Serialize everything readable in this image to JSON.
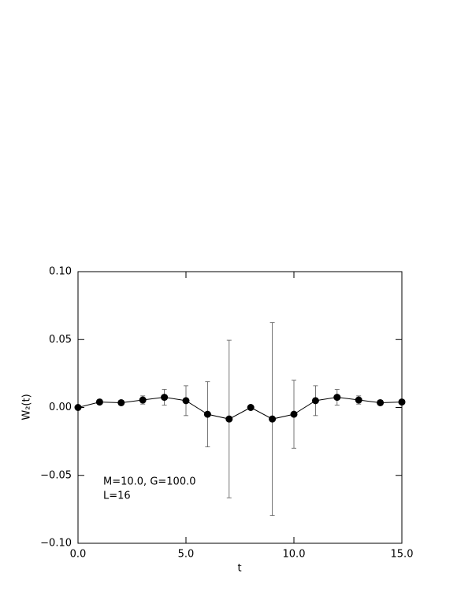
{
  "chart_data": {
    "type": "errorbar_line",
    "x_label": "t",
    "y_label": "W₂(t)",
    "annotations": [
      "M=10.0, G=100.0",
      "L=16"
    ],
    "x": [
      0,
      1,
      2,
      3,
      4,
      5,
      6,
      7,
      8,
      9,
      10,
      11,
      12,
      13,
      14,
      15
    ],
    "series": [
      {
        "color": "#000000",
        "values": [
          0.0,
          0.004,
          0.0035,
          0.0055,
          0.0075,
          0.005,
          -0.005,
          -0.0085,
          0.0,
          -0.0085,
          -0.005,
          0.005,
          0.0075,
          0.0055,
          0.0035,
          0.004
        ],
        "errors": [
          null,
          null,
          null,
          0.003,
          0.0058,
          0.011,
          0.024,
          0.058,
          null,
          0.071,
          0.025,
          0.011,
          0.0058,
          0.003,
          null,
          null
        ]
      }
    ],
    "xlim": [
      0,
      15
    ],
    "xticks": [
      {
        "value": 0,
        "label": "0.0"
      },
      {
        "value": 5,
        "label": "5.0"
      },
      {
        "value": 10,
        "label": "10.0"
      },
      {
        "value": 15,
        "label": "15.0"
      }
    ],
    "ylim": [
      -0.1,
      0.1
    ],
    "yticks": [
      {
        "value": -0.1,
        "label": "−0.10"
      },
      {
        "value": -0.05,
        "label": "−0.05"
      },
      {
        "value": 0,
        "label": "0.00"
      },
      {
        "value": 0.05,
        "label": "0.05"
      },
      {
        "value": 0.1,
        "label": "0.10"
      }
    ],
    "grid": false
  }
}
